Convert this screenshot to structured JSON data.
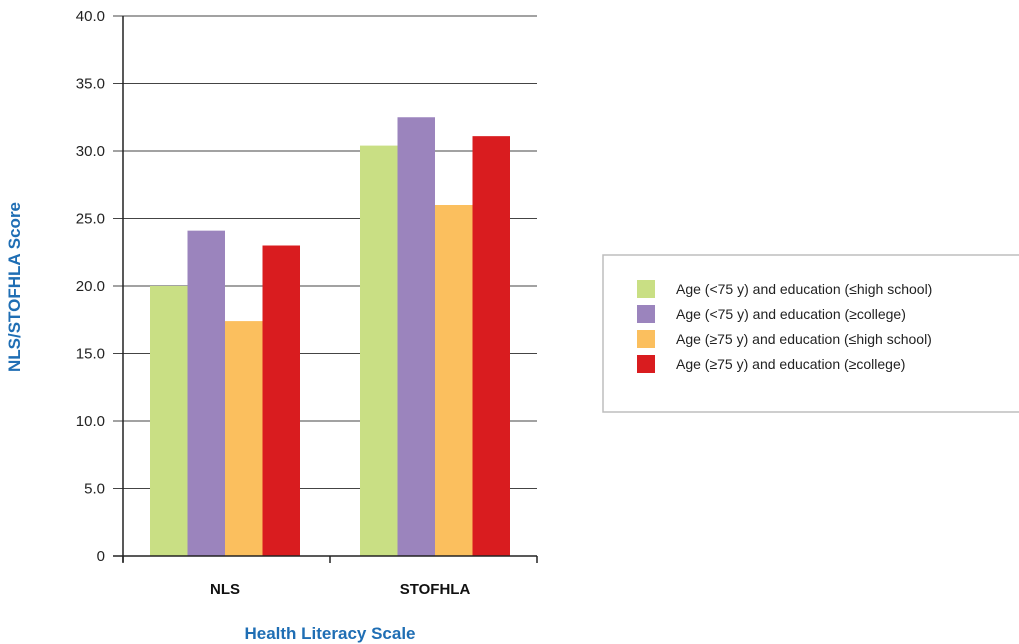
{
  "chart_data": {
    "type": "bar",
    "categories": [
      "NLS",
      "STOFHLA"
    ],
    "series": [
      {
        "name": "Age (<75 y) and education (≤high school)",
        "values": [
          20.0,
          30.4
        ],
        "color": "#c9df84"
      },
      {
        "name": "Age (<75 y) and education (≥college)",
        "values": [
          24.1,
          32.5
        ],
        "color": "#9b84bd"
      },
      {
        "name": "Age (≥75 y) and education (≤high school)",
        "values": [
          17.4,
          26.0
        ],
        "color": "#fbbf5e"
      },
      {
        "name": "Age (≥75 y) and education (≥college)",
        "values": [
          23.0,
          31.1
        ],
        "color": "#d91c1f"
      }
    ],
    "ylim": [
      0,
      40
    ],
    "yticks": [
      "0",
      "5.0",
      "10.0",
      "15.0",
      "20.0",
      "25.0",
      "30.0",
      "35.0",
      "40.0"
    ],
    "xlabel": "Health Literacy Scale",
    "ylabel": "NLS/STOFHLA Score",
    "axis_title_color": "#1f6eb4",
    "grid": true,
    "legend_position": "right"
  }
}
